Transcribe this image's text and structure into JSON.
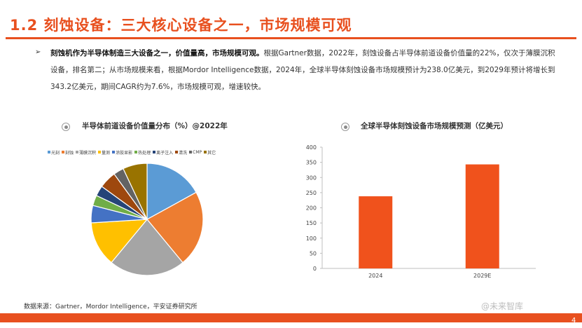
{
  "header": {
    "title": "1.2 刻蚀设备：三大核心设备之一，市场规模可观"
  },
  "summary": {
    "bullet": "➢",
    "lead": "刻蚀机作为半导体制造三大设备之一，价值量高，市场规模可观。",
    "body": "根据Gartner数据，2022年，刻蚀设备占半导体前道设备价值量的22%，仅次于薄膜沉积设备，排名第二；从市场规模来看，根据Mordor Intelligence数据，2024年，全球半导体刻蚀设备市场规模预计为238.0亿美元，到2029年预计将增长到343.2亿美元，期间CAGR约为7.6%，市场规模可观，增速较快。"
  },
  "chart_data": [
    {
      "type": "pie",
      "title": "半导体前道设备价值量分布（%）@2022年",
      "legend": "top",
      "categories": [
        "光刻",
        "刻蚀",
        "薄膜沉积",
        "量测",
        "涂胶显影",
        "热处理",
        "离子注入",
        "清洗",
        "CMP",
        "其它"
      ],
      "values": [
        17,
        22,
        22,
        13,
        5,
        3,
        3,
        5,
        3,
        7
      ],
      "colors": [
        "#5b9bd5",
        "#ed7d31",
        "#a5a5a5",
        "#ffc000",
        "#4472c4",
        "#70ad47",
        "#264478",
        "#9e480e",
        "#636363",
        "#997300"
      ]
    },
    {
      "type": "bar",
      "title": "全球半导体刻蚀设备市场规模预测（亿美元）",
      "categories": [
        "2024",
        "2029E"
      ],
      "values": [
        238.0,
        343.2
      ],
      "ylim": [
        0,
        400
      ],
      "yticks": [
        "0",
        "50",
        "100",
        "150",
        "200",
        "250",
        "300",
        "350",
        "400"
      ],
      "xlabel": "",
      "ylabel": "",
      "bar_color": "#f0521c",
      "grid": false
    }
  ],
  "footer": {
    "source": "数据来源：Gartner，Mordor Intelligence，平安证券研究所",
    "watermark": "@未来智库",
    "page": "4"
  },
  "colors": {
    "accent": "#e8501f"
  }
}
